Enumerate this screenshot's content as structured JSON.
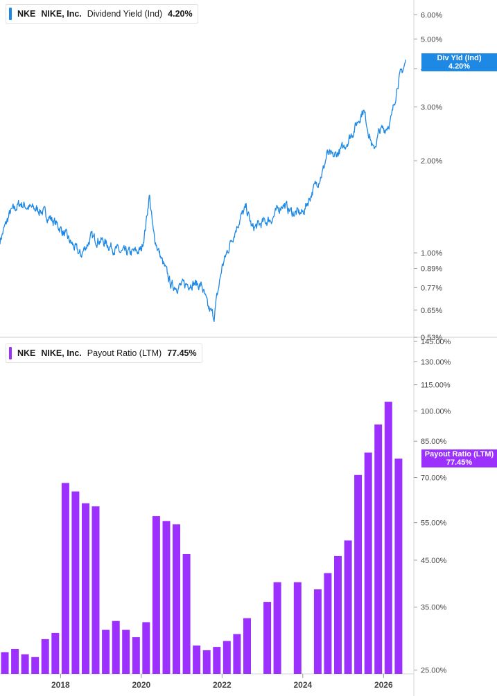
{
  "colors": {
    "yield": "#1e88e5",
    "payout": "#9b30ff",
    "grid": "#ececec",
    "axis_text": "#444444"
  },
  "top_panel": {
    "legend": {
      "ticker": "NKE",
      "company": "NIKE, Inc.",
      "metric": "Dividend Yield (Ind)",
      "value": "4.20%"
    },
    "price_tag": {
      "label": "Div Yld (Ind)",
      "value": "4.20%"
    }
  },
  "bottom_panel": {
    "legend": {
      "ticker": "NKE",
      "company": "NIKE, Inc.",
      "metric": "Payout Ratio (LTM)",
      "value": "77.45%"
    },
    "price_tag": {
      "label": "Payout Ratio (LTM)",
      "value": "77.45%"
    }
  },
  "chart_data": [
    {
      "type": "line",
      "scale": "log",
      "series": [
        {
          "name": "Dividend Yield (Ind)"
        }
      ],
      "x": [
        2016.5,
        2016.75,
        2017.0,
        2017.25,
        2017.5,
        2017.75,
        2018.0,
        2018.25,
        2018.5,
        2018.75,
        2019.0,
        2019.25,
        2019.5,
        2019.75,
        2020.0,
        2020.1,
        2020.2,
        2020.3,
        2020.5,
        2020.75,
        2021.0,
        2021.25,
        2021.5,
        2021.65,
        2021.8,
        2022.0,
        2022.25,
        2022.45,
        2022.6,
        2022.75,
        2023.0,
        2023.25,
        2023.5,
        2023.75,
        2024.0,
        2024.25,
        2024.5,
        2024.6,
        2024.75,
        2025.0,
        2025.25,
        2025.5,
        2025.6,
        2025.75,
        2025.9,
        2026.05,
        2026.2,
        2026.35,
        2026.55
      ],
      "y": [
        1.1,
        1.35,
        1.45,
        1.4,
        1.38,
        1.3,
        1.2,
        1.08,
        0.98,
        1.12,
        1.1,
        1.05,
        1.0,
        1.0,
        1.02,
        1.2,
        1.55,
        1.15,
        0.95,
        0.78,
        0.78,
        0.8,
        0.78,
        0.66,
        0.62,
        0.9,
        1.12,
        1.3,
        1.4,
        1.2,
        1.25,
        1.3,
        1.45,
        1.35,
        1.35,
        1.6,
        1.85,
        2.1,
        2.05,
        2.2,
        2.5,
        2.95,
        2.6,
        2.15,
        2.5,
        2.55,
        2.75,
        3.6,
        4.2
      ],
      "xlim": [
        2016.5,
        2026.75
      ],
      "ylim": [
        0.53,
        6.6
      ],
      "y_ticks": [
        "6.00%",
        "5.00%",
        "4.00%",
        "3.00%",
        "2.00%",
        "1.00%",
        "0.89%",
        "0.77%",
        "0.65%",
        "0.53%"
      ],
      "grid": false,
      "legend": "top-left"
    },
    {
      "type": "bar",
      "scale": "log",
      "series": [
        {
          "name": "Payout Ratio (LTM)"
        }
      ],
      "x": [
        2016.62,
        2016.87,
        2017.12,
        2017.37,
        2017.62,
        2017.87,
        2018.12,
        2018.37,
        2018.62,
        2018.87,
        2019.12,
        2019.37,
        2019.62,
        2019.87,
        2020.12,
        2020.37,
        2020.62,
        2020.87,
        2021.12,
        2021.37,
        2021.62,
        2021.87,
        2022.12,
        2022.37,
        2022.62,
        2023.12,
        2023.37,
        2023.87,
        2024.37,
        2024.62,
        2024.87,
        2025.12,
        2025.37,
        2025.62,
        2025.87,
        2026.12,
        2026.37
      ],
      "values": [
        27.5,
        28,
        27.2,
        26.8,
        29.5,
        30.5,
        68,
        65,
        61,
        60,
        31,
        32.5,
        31,
        29.8,
        32.3,
        57,
        55.5,
        54.5,
        46.5,
        28.5,
        27.8,
        28.3,
        29.2,
        30.3,
        33,
        36,
        40,
        40,
        38.5,
        42,
        46,
        50,
        71,
        80,
        93,
        105,
        77.45
      ],
      "xlim": [
        2016.5,
        2026.75
      ],
      "ylim": [
        24.5,
        145
      ],
      "y_ticks": [
        "145.00%",
        "130.00%",
        "115.00%",
        "100.00%",
        "85.00%",
        "70.00%",
        "55.00%",
        "45.00%",
        "35.00%",
        "25.00%"
      ],
      "x_ticks": [
        "2018",
        "2020",
        "2022",
        "2024",
        "2026"
      ],
      "grid": false,
      "legend": "top-left"
    }
  ]
}
